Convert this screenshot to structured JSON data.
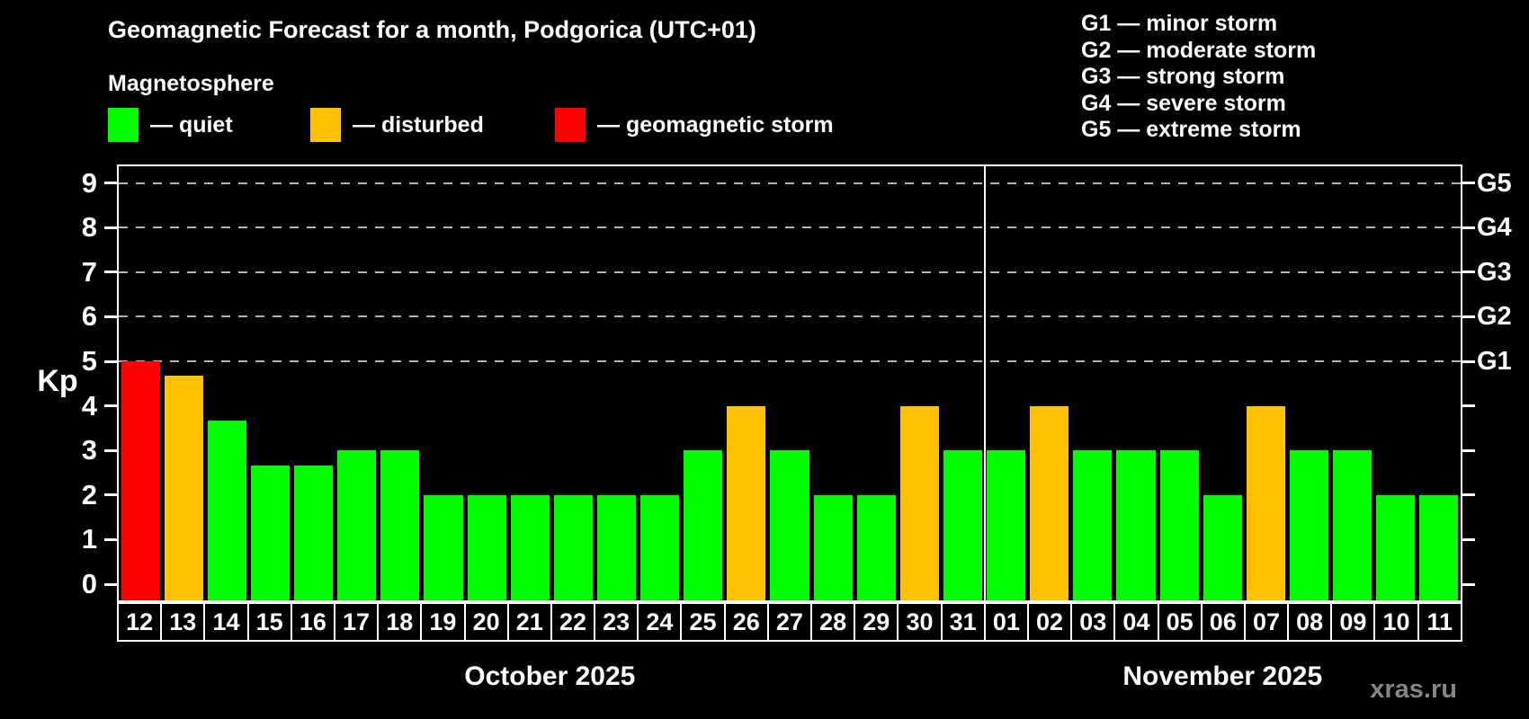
{
  "header": {
    "title": "Geomagnetic Forecast for a month, Podgorica (UTC+01)",
    "subtitle": "Magnetosphere"
  },
  "legend": {
    "items": [
      {
        "key": "quiet",
        "label": "— quiet",
        "color": "#00ff00"
      },
      {
        "key": "disturbed",
        "label": "— disturbed",
        "color": "#ffc000"
      },
      {
        "key": "storm",
        "label": "— geomagnetic storm",
        "color": "#ff0000"
      }
    ]
  },
  "g_legend": {
    "items": [
      "G1 — minor storm",
      "G2 — moderate storm",
      "G3 — strong storm",
      "G4 — severe storm",
      "G5 — extreme storm"
    ]
  },
  "watermark": "xras.ru",
  "chart_data": {
    "type": "bar",
    "title": "Geomagnetic Forecast for a month, Podgorica (UTC+01)",
    "ylabel": "Kp",
    "ylim": [
      0,
      9.4
    ],
    "yticks": [
      0,
      1,
      2,
      3,
      4,
      5,
      6,
      7,
      8,
      9
    ],
    "grid": "dashed horizontal gridlines at Kp 5 through 9 only",
    "legend_position": "top",
    "g_levels": [
      {
        "kp": 5,
        "label": "G1"
      },
      {
        "kp": 6,
        "label": "G2"
      },
      {
        "kp": 7,
        "label": "G3"
      },
      {
        "kp": 8,
        "label": "G4"
      },
      {
        "kp": 9,
        "label": "G5"
      }
    ],
    "status_colors": {
      "quiet": "#00ff00",
      "disturbed": "#ffc000",
      "storm": "#ff0000"
    },
    "months": [
      {
        "label": "October 2025",
        "days": 20
      },
      {
        "label": "November 2025",
        "days": 11
      }
    ],
    "series": [
      {
        "date": "12",
        "kp": 5.0,
        "status": "storm"
      },
      {
        "date": "13",
        "kp": 4.67,
        "status": "disturbed"
      },
      {
        "date": "14",
        "kp": 3.67,
        "status": "quiet"
      },
      {
        "date": "15",
        "kp": 2.67,
        "status": "quiet"
      },
      {
        "date": "16",
        "kp": 2.67,
        "status": "quiet"
      },
      {
        "date": "17",
        "kp": 3.0,
        "status": "quiet"
      },
      {
        "date": "18",
        "kp": 3.0,
        "status": "quiet"
      },
      {
        "date": "19",
        "kp": 2.0,
        "status": "quiet"
      },
      {
        "date": "20",
        "kp": 2.0,
        "status": "quiet"
      },
      {
        "date": "21",
        "kp": 2.0,
        "status": "quiet"
      },
      {
        "date": "22",
        "kp": 2.0,
        "status": "quiet"
      },
      {
        "date": "23",
        "kp": 2.0,
        "status": "quiet"
      },
      {
        "date": "24",
        "kp": 2.0,
        "status": "quiet"
      },
      {
        "date": "25",
        "kp": 3.0,
        "status": "quiet"
      },
      {
        "date": "26",
        "kp": 4.0,
        "status": "disturbed"
      },
      {
        "date": "27",
        "kp": 3.0,
        "status": "quiet"
      },
      {
        "date": "28",
        "kp": 2.0,
        "status": "quiet"
      },
      {
        "date": "29",
        "kp": 2.0,
        "status": "quiet"
      },
      {
        "date": "30",
        "kp": 4.0,
        "status": "disturbed"
      },
      {
        "date": "31",
        "kp": 3.0,
        "status": "quiet"
      },
      {
        "date": "01",
        "kp": 3.0,
        "status": "quiet"
      },
      {
        "date": "02",
        "kp": 4.0,
        "status": "disturbed"
      },
      {
        "date": "03",
        "kp": 3.0,
        "status": "quiet"
      },
      {
        "date": "04",
        "kp": 3.0,
        "status": "quiet"
      },
      {
        "date": "05",
        "kp": 3.0,
        "status": "quiet"
      },
      {
        "date": "06",
        "kp": 2.0,
        "status": "quiet"
      },
      {
        "date": "07",
        "kp": 4.0,
        "status": "disturbed"
      },
      {
        "date": "08",
        "kp": 3.0,
        "status": "quiet"
      },
      {
        "date": "09",
        "kp": 3.0,
        "status": "quiet"
      },
      {
        "date": "10",
        "kp": 2.0,
        "status": "quiet"
      },
      {
        "date": "11",
        "kp": 2.0,
        "status": "quiet"
      }
    ]
  }
}
